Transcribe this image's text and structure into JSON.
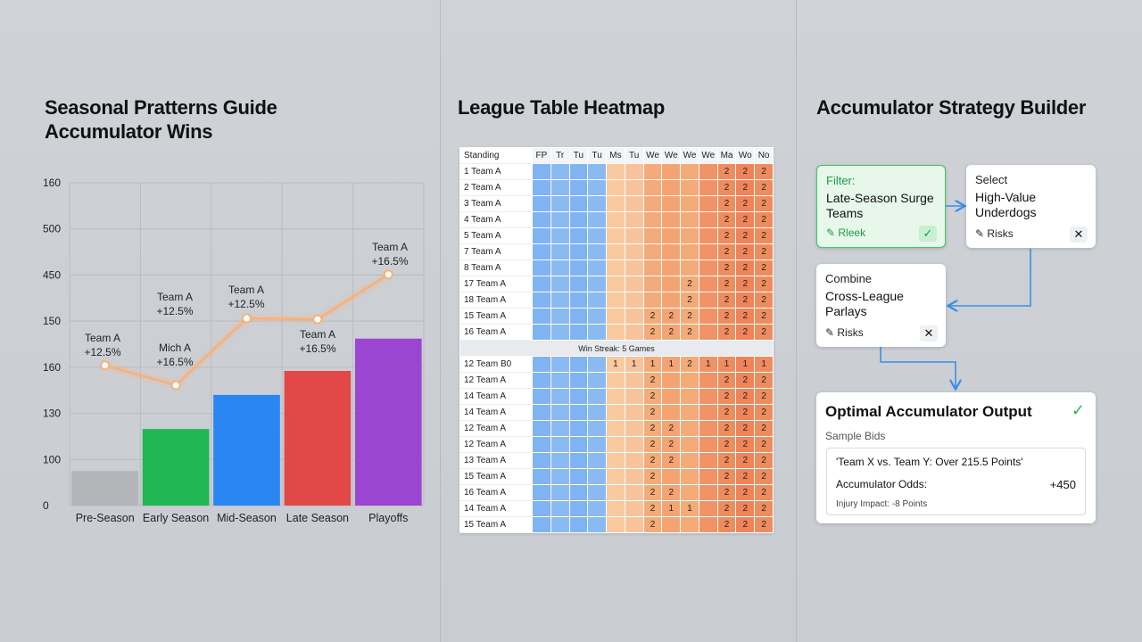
{
  "chart_data": {
    "type": "bar",
    "title": "Seasonal Pratterns Guide Accumulator Wins",
    "categories": [
      "Pre-Season",
      "Early Season",
      "Mid-Season",
      "Late Season",
      "Playoffs"
    ],
    "values": [
      0.75,
      1.66,
      2.4,
      2.92,
      3.62
    ],
    "colors": [
      "#b3b5b9",
      "#1fb653",
      "#2a86f2",
      "#e34848",
      "#9b45d3"
    ],
    "ylim": [
      0,
      7
    ],
    "yticks": [
      {
        "value": 0,
        "label": "0"
      },
      {
        "value": 1,
        "label": "100"
      },
      {
        "value": 2,
        "label": "130"
      },
      {
        "value": 3,
        "label": "160"
      },
      {
        "value": 4,
        "label": "150"
      },
      {
        "value": 5,
        "label": "450"
      },
      {
        "value": 6,
        "label": "500"
      },
      {
        "value": 7,
        "label": "160"
      }
    ],
    "grid": true,
    "line": {
      "color": "#f6b17c",
      "values": [
        3.04,
        2.61,
        4.06,
        4.04,
        5.01
      ]
    },
    "annotations": [
      [
        "Team A",
        "+12.5%"
      ],
      [
        "Team A",
        "+12.5%"
      ],
      [
        "Mich A",
        "+16.5%"
      ],
      [
        "Team A",
        "+12.5%"
      ],
      [
        "Team A",
        "+16.5%"
      ],
      [
        "Team A",
        "+16.5%"
      ]
    ]
  },
  "heatmap": {
    "title": "League Table Heatmap",
    "header": [
      "Standing",
      "FP",
      "Tr",
      "Tu",
      "Tu",
      "Ms",
      "Tu",
      "We",
      "We",
      "We",
      "We",
      "Ma",
      "Wo",
      "No"
    ],
    "column_colors": [
      "#7fb3f1",
      "#8abaf2",
      "#7fb3f1",
      "#8abaf2",
      "#f9c9a0",
      "#f8c39a",
      "#f5aa79",
      "#f4a473",
      "#f5aa79",
      "#f09366",
      "#ef8c5e",
      "#f08358",
      "#ef8c5e"
    ],
    "rows": [
      {
        "label": "1 Team A",
        "cells": [
          null,
          null,
          null,
          null,
          null,
          null,
          null,
          null,
          null,
          null,
          "2",
          "2",
          "2"
        ]
      },
      {
        "label": "2 Team A",
        "cells": [
          null,
          null,
          null,
          null,
          null,
          null,
          null,
          null,
          null,
          null,
          "2",
          "2",
          "2"
        ]
      },
      {
        "label": "3 Team A",
        "cells": [
          null,
          null,
          null,
          null,
          null,
          null,
          null,
          null,
          null,
          null,
          "2",
          "2",
          "2"
        ]
      },
      {
        "label": "4 Team A",
        "cells": [
          null,
          null,
          null,
          null,
          null,
          null,
          null,
          null,
          null,
          null,
          "2",
          "2",
          "2"
        ]
      },
      {
        "label": "5 Team A",
        "cells": [
          null,
          null,
          null,
          null,
          null,
          null,
          null,
          null,
          null,
          null,
          "2",
          "2",
          "2"
        ]
      },
      {
        "label": "7 Team A",
        "cells": [
          null,
          null,
          null,
          null,
          null,
          null,
          null,
          null,
          null,
          null,
          "2",
          "2",
          "2"
        ]
      },
      {
        "label": "8 Team A",
        "cells": [
          null,
          null,
          null,
          null,
          null,
          null,
          null,
          null,
          null,
          null,
          "2",
          "2",
          "2"
        ]
      },
      {
        "label": "17 Team A",
        "cells": [
          null,
          null,
          null,
          null,
          null,
          null,
          null,
          null,
          "2",
          null,
          "2",
          "2",
          "2"
        ]
      },
      {
        "label": "18 Team A",
        "cells": [
          null,
          null,
          null,
          null,
          null,
          null,
          null,
          null,
          "2",
          null,
          "2",
          "2",
          "2"
        ]
      },
      {
        "label": "15 Team A",
        "cells": [
          null,
          null,
          null,
          null,
          null,
          null,
          "2",
          "2",
          "2",
          null,
          "2",
          "2",
          "2"
        ]
      },
      {
        "label": "16 Team A",
        "cells": [
          null,
          null,
          null,
          null,
          null,
          null,
          "2",
          "2",
          "2",
          null,
          "2",
          "2",
          "2"
        ]
      },
      {
        "separator": "Win Streak: 5 Games"
      },
      {
        "label": "12 Team B0",
        "cells": [
          null,
          null,
          null,
          null,
          "1",
          "1",
          "1",
          "1",
          "2",
          "1",
          "1",
          "1",
          "1"
        ]
      },
      {
        "label": "12 Team A",
        "cells": [
          null,
          null,
          null,
          null,
          null,
          null,
          "2",
          null,
          null,
          null,
          "2",
          "2",
          "2"
        ]
      },
      {
        "label": "14 Team A",
        "cells": [
          null,
          null,
          null,
          null,
          null,
          null,
          "2",
          null,
          null,
          null,
          "2",
          "2",
          "2"
        ]
      },
      {
        "label": "14 Team A",
        "cells": [
          null,
          null,
          null,
          null,
          null,
          null,
          "2",
          null,
          null,
          null,
          "2",
          "2",
          "2"
        ]
      },
      {
        "label": "12 Team A",
        "cells": [
          null,
          null,
          null,
          null,
          null,
          null,
          "2",
          "2",
          null,
          null,
          "2",
          "2",
          "2"
        ]
      },
      {
        "label": "12 Team A",
        "cells": [
          null,
          null,
          null,
          null,
          null,
          null,
          "2",
          "2",
          null,
          null,
          "2",
          "2",
          "2"
        ]
      },
      {
        "label": "13 Team A",
        "cells": [
          null,
          null,
          null,
          null,
          null,
          null,
          "2",
          "2",
          null,
          null,
          "2",
          "2",
          "2"
        ]
      },
      {
        "label": "15 Team A",
        "cells": [
          null,
          null,
          null,
          null,
          null,
          null,
          "2",
          null,
          null,
          null,
          "2",
          "2",
          "2"
        ]
      },
      {
        "label": "16 Team A",
        "cells": [
          null,
          null,
          null,
          null,
          null,
          null,
          "2",
          "2",
          null,
          null,
          "2",
          "2",
          "2"
        ]
      },
      {
        "label": "14 Team A",
        "cells": [
          null,
          null,
          null,
          null,
          null,
          null,
          "2",
          "1",
          "1",
          null,
          "2",
          "2",
          "2"
        ]
      },
      {
        "label": "15 Team A",
        "cells": [
          null,
          null,
          null,
          null,
          null,
          null,
          "2",
          null,
          null,
          null,
          "2",
          "2",
          "2"
        ]
      }
    ]
  },
  "builder": {
    "title": "Accumulator Strategy Builder",
    "nodes": [
      {
        "kicker": "Filter:",
        "label": "Late-Season Surge Teams",
        "action": "Rleek"
      },
      {
        "kicker": "Select",
        "label": "High-Value Underdogs",
        "action": "Risks"
      },
      {
        "kicker": "Combine",
        "label": "Cross-League Parlays",
        "action": "Risks"
      }
    ],
    "output": {
      "title": "Optimal Accumulator Output",
      "subtitle": "Sample Bids",
      "bet": "'Team X vs. Team Y: Over 215.5 Points'",
      "odds_label": "Accumulator Odds:",
      "odds": "+450",
      "note": "Injury Impact: -8 Points"
    }
  }
}
